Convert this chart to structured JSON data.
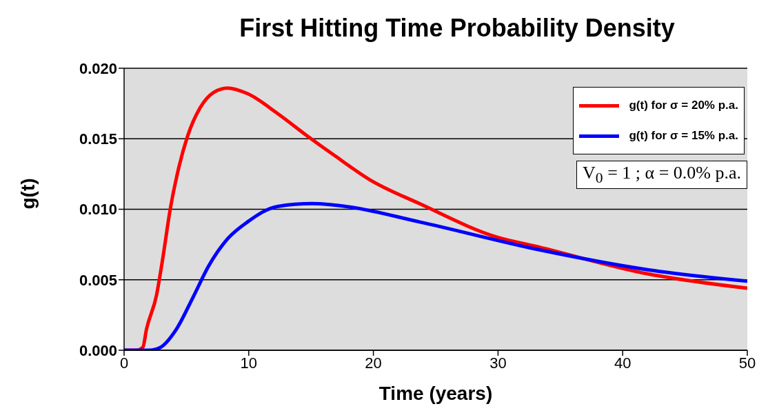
{
  "chart_data": {
    "type": "line",
    "title": "First Hitting Time Probability Density",
    "xlabel": "Time (years)",
    "ylabel": "g(t)",
    "xlim": [
      0,
      50
    ],
    "xticks": [
      0,
      10,
      20,
      30,
      40,
      50
    ],
    "ylim": [
      0,
      0.02
    ],
    "yticks": [
      {
        "value": 0,
        "label": "0.000"
      },
      {
        "value": 0.005,
        "label": "0.005"
      },
      {
        "value": 0.01,
        "label": "0.010"
      },
      {
        "value": 0.015,
        "label": "0.015"
      },
      {
        "value": 0.02,
        "label": "0.020"
      }
    ],
    "grid": "y",
    "legend": "top right",
    "marker": "none",
    "line_style": "solid",
    "annotations": [
      "V$_{0}$ =  1 ;  α =  0.0%  p.a."
    ],
    "series": [
      {
        "name": "g(t) for σ = 20% p.a.",
        "color": "#ff0000",
        "x": [
          0,
          1,
          1.5,
          1.8,
          2.6,
          3.1,
          3.7,
          4.4,
          5.1,
          6.1,
          7.2,
          8.3,
          9.9,
          12.3,
          14.7,
          16.9,
          19.7,
          23.7,
          30,
          32.9,
          42.1,
          50
        ],
        "values": [
          0,
          0,
          0.0002,
          0.0015,
          0.0039,
          0.0065,
          0.01,
          0.013,
          0.0152,
          0.0172,
          0.0183,
          0.0186,
          0.0182,
          0.0168,
          0.0152,
          0.0138,
          0.0121,
          0.0104,
          0.008,
          0.0074,
          0.0054,
          0.0044
        ]
      },
      {
        "name": "g(t) for σ = 15% p.a.",
        "color": "#0000ff",
        "x": [
          0,
          2,
          2.9,
          4.2,
          5.5,
          6.8,
          8.3,
          9.9,
          12.3,
          15.1,
          17.8,
          23.7,
          32.9,
          42.1,
          50
        ],
        "values": [
          0,
          0,
          0.0002,
          0.0015,
          0.0037,
          0.006,
          0.0079,
          0.0091,
          0.0102,
          0.0104,
          0.0102,
          0.0091,
          0.0072,
          0.0057,
          0.0049
        ]
      }
    ]
  }
}
